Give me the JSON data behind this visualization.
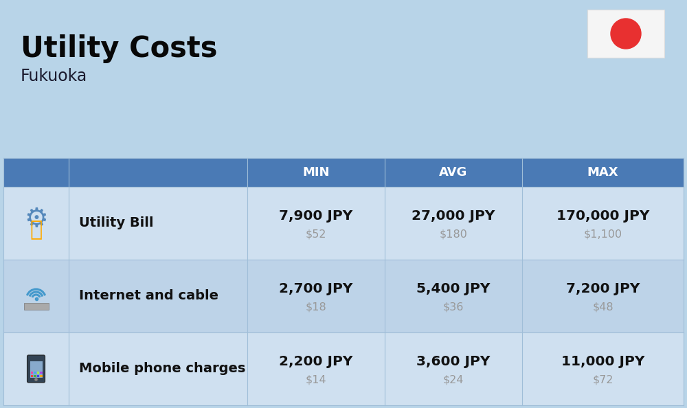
{
  "title": "Utility Costs",
  "subtitle": "Fukuoka",
  "background_color": "#b8d4e8",
  "header_bg_color": "#4a7ab5",
  "header_text_color": "#ffffff",
  "row_bg_color_light": "#cfe0f0",
  "row_bg_color_dark": "#bdd3e8",
  "col_headers": [
    "MIN",
    "AVG",
    "MAX"
  ],
  "rows": [
    {
      "label": "Utility Bill",
      "icon": "utility",
      "min_jpy": "7,900 JPY",
      "min_usd": "$52",
      "avg_jpy": "27,000 JPY",
      "avg_usd": "$180",
      "max_jpy": "170,000 JPY",
      "max_usd": "$1,100"
    },
    {
      "label": "Internet and cable",
      "icon": "internet",
      "min_jpy": "2,700 JPY",
      "min_usd": "$18",
      "avg_jpy": "5,400 JPY",
      "avg_usd": "$36",
      "max_jpy": "7,200 JPY",
      "max_usd": "$48"
    },
    {
      "label": "Mobile phone charges",
      "icon": "mobile",
      "min_jpy": "2,200 JPY",
      "min_usd": "$14",
      "avg_jpy": "3,600 JPY",
      "avg_usd": "$24",
      "max_jpy": "11,000 JPY",
      "max_usd": "$72"
    }
  ],
  "jpy_fontsize": 14.5,
  "usd_fontsize": 11.5,
  "label_fontsize": 14,
  "header_fontsize": 13,
  "title_fontsize": 30,
  "subtitle_fontsize": 17,
  "jpy_color": "#111111",
  "usd_color": "#999999",
  "label_color": "#111111",
  "divider_color": "#a0bed8",
  "flag_circle_color": "#e83030",
  "flag_bg_color": "#f5f5f5"
}
